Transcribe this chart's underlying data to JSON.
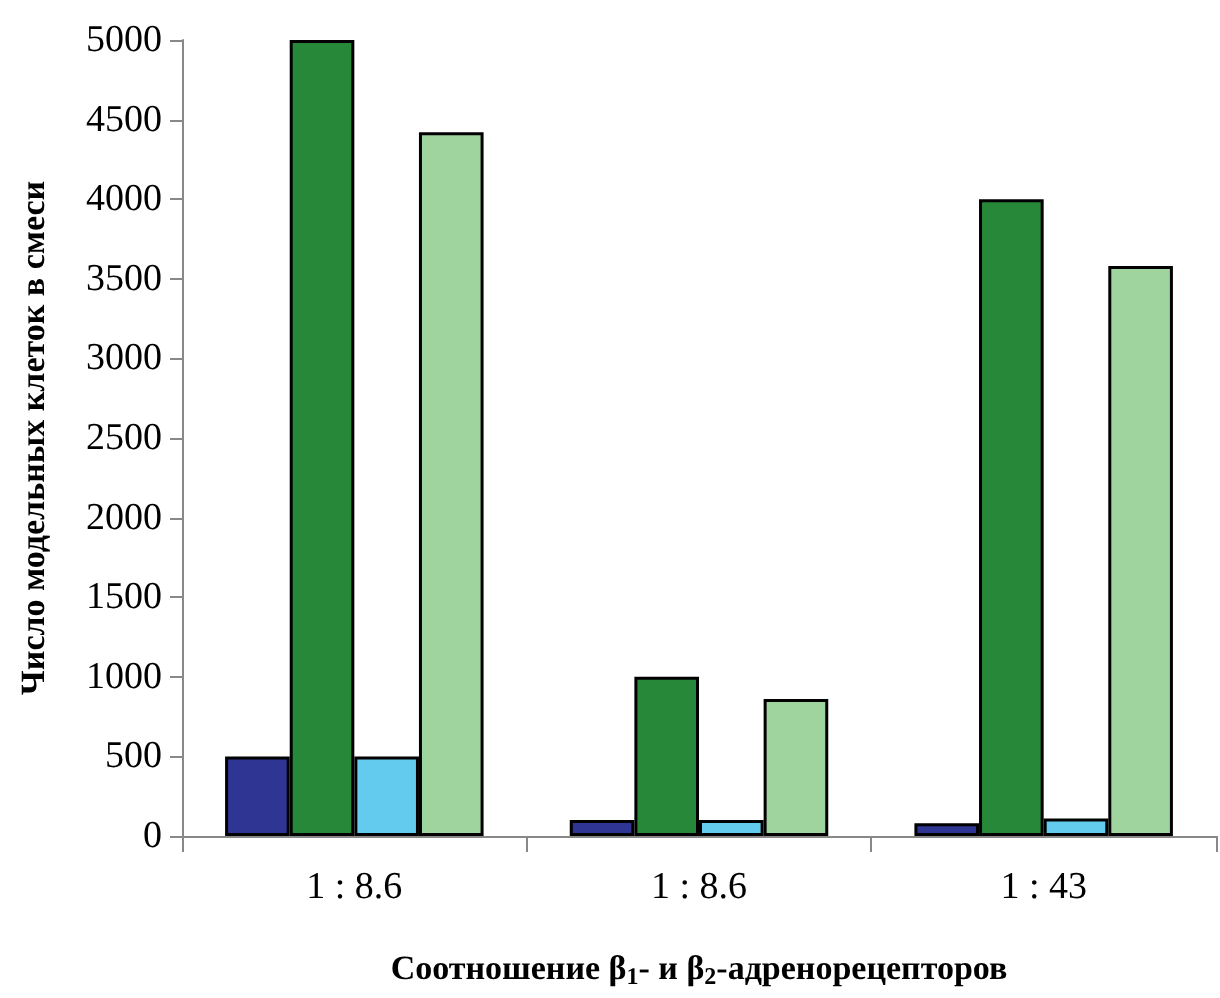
{
  "chart_data": {
    "type": "bar",
    "xlabel": "Соотношение β$_{1}$- и β$_{2}$-адренорецепторов",
    "ylabel": "Число модельных клеток в смеси",
    "categories": [
      "1 : 8.6",
      "1 : 8.6",
      "1 : 43"
    ],
    "series": [
      {
        "color": "#2e3592",
        "values": [
          500,
          100,
          80
        ]
      },
      {
        "color": "#28883a",
        "values": [
          5000,
          1000,
          4000
        ]
      },
      {
        "color": "#62cbee",
        "values": [
          500,
          100,
          110
        ]
      },
      {
        "color": "#a0d49f",
        "values": [
          4420,
          860,
          3580
        ]
      }
    ],
    "ylim": [
      0,
      5000
    ],
    "yticks": [
      0,
      500,
      1000,
      1500,
      2000,
      2500,
      3000,
      3500,
      4000,
      4500,
      5000
    ],
    "grid": false
  }
}
